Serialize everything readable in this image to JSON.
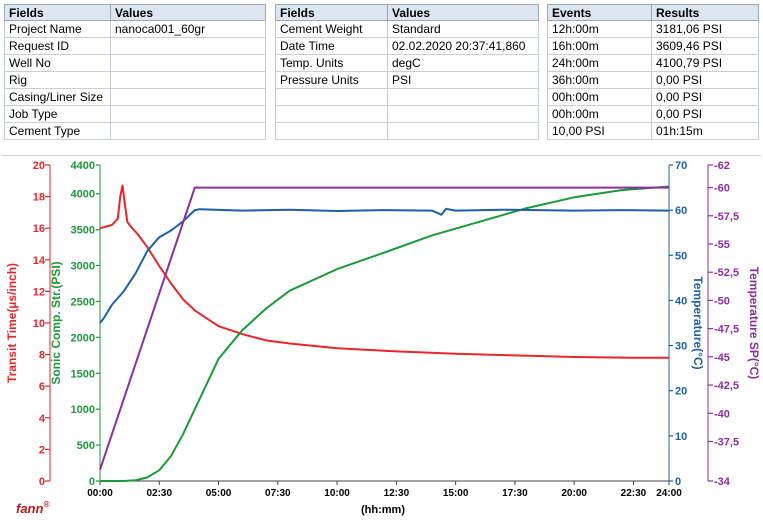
{
  "fields_table_1": {
    "header": [
      "Fields",
      "Values"
    ],
    "rows": [
      [
        "Project Name",
        "nanoca001_60gr"
      ],
      [
        "Request ID",
        ""
      ],
      [
        "Well No",
        ""
      ],
      [
        "Rig",
        ""
      ],
      [
        "Casing/Liner Size",
        ""
      ],
      [
        "Job Type",
        ""
      ],
      [
        "Cement Type",
        ""
      ]
    ]
  },
  "fields_table_2": {
    "header": [
      "Fields",
      "Values"
    ],
    "rows": [
      [
        "Cement Weight",
        "Standard"
      ],
      [
        "Date Time",
        "02.02.2020 20:37:41,860"
      ],
      [
        "Temp. Units",
        "degC"
      ],
      [
        "Pressure Units",
        "PSI"
      ],
      [
        "",
        ""
      ],
      [
        "",
        ""
      ],
      [
        "",
        ""
      ]
    ]
  },
  "events_table": {
    "header": [
      "Events",
      "Results"
    ],
    "rows": [
      [
        "12h:00m",
        "3181,06 PSI"
      ],
      [
        "16h:00m",
        "3609,46 PSI"
      ],
      [
        "24h:00m",
        "4100,79 PSI"
      ],
      [
        "36h:00m",
        "0,00 PSI"
      ],
      [
        "00h:00m",
        "0,00 PSI"
      ],
      [
        "00h:00m",
        "0,00 PSI"
      ],
      [
        "10,00 PSI",
        "01h:15m"
      ]
    ]
  },
  "logo_text": "fann",
  "logo_mark": "®",
  "chart_data": {
    "type": "line",
    "xlabel": "(hh:mm)",
    "x_range_hours": [
      0,
      24
    ],
    "x_ticks": [
      {
        "h": 0,
        "label": "00:00"
      },
      {
        "h": 2.5,
        "label": "02:30"
      },
      {
        "h": 5,
        "label": "05:00"
      },
      {
        "h": 7.5,
        "label": "07:30"
      },
      {
        "h": 10,
        "label": "10:00"
      },
      {
        "h": 12.5,
        "label": "12:30"
      },
      {
        "h": 15,
        "label": "15:00"
      },
      {
        "h": 17.5,
        "label": "17:30"
      },
      {
        "h": 20,
        "label": "20:00"
      },
      {
        "h": 22.5,
        "label": "22:30"
      },
      {
        "h": 24,
        "label": "24:00"
      }
    ],
    "axes": {
      "transit_time": {
        "label": "Transit Time(µs/inch)",
        "color": "#e8262a",
        "range": [
          0,
          20
        ],
        "ticks": [
          {
            "v": 0,
            "label": "0"
          },
          {
            "v": 2,
            "label": "2"
          },
          {
            "v": 4,
            "label": "4"
          },
          {
            "v": 6,
            "label": "6"
          },
          {
            "v": 8,
            "label": "8"
          },
          {
            "v": 10,
            "label": "10"
          },
          {
            "v": 12,
            "label": "12"
          },
          {
            "v": 14,
            "label": "14"
          },
          {
            "v": 16,
            "label": "16"
          },
          {
            "v": 18,
            "label": "18"
          },
          {
            "v": 20,
            "label": "20"
          }
        ]
      },
      "sonic_strength": {
        "label": "Sonic Comp. Str.(PSI)",
        "color": "#1a9a3a",
        "range": [
          0,
          4400
        ],
        "ticks": [
          {
            "v": 0,
            "label": "0"
          },
          {
            "v": 500,
            "label": "500"
          },
          {
            "v": 1000,
            "label": "1000"
          },
          {
            "v": 1500,
            "label": "1500"
          },
          {
            "v": 2000,
            "label": "2000"
          },
          {
            "v": 2500,
            "label": "2500"
          },
          {
            "v": 3000,
            "label": "3000"
          },
          {
            "v": 3500,
            "label": "3500"
          },
          {
            "v": 4000,
            "label": "4000"
          },
          {
            "v": 4400,
            "label": "4400"
          }
        ]
      },
      "temperature": {
        "label": "Temperature(°C)",
        "color": "#1f5fa8",
        "range": [
          0,
          70
        ],
        "ticks": [
          {
            "v": 0,
            "label": "0"
          },
          {
            "v": 10,
            "label": "10"
          },
          {
            "v": 20,
            "label": "20"
          },
          {
            "v": 30,
            "label": "30"
          },
          {
            "v": 40,
            "label": "40"
          },
          {
            "v": 50,
            "label": "50"
          },
          {
            "v": 60,
            "label": "60"
          },
          {
            "v": 70,
            "label": "70"
          }
        ]
      },
      "temperature_sp": {
        "label": "Temperature SP(°C)",
        "color": "#8b2ea0",
        "range": [
          -34,
          -62
        ],
        "ticks": [
          {
            "v": -34,
            "label": "-34"
          },
          {
            "v": -37.5,
            "label": "-37,5"
          },
          {
            "v": -40,
            "label": "-40"
          },
          {
            "v": -42.5,
            "label": "-42,5"
          },
          {
            "v": -45,
            "label": "-45"
          },
          {
            "v": -47.5,
            "label": "-47,5"
          },
          {
            "v": -50,
            "label": "-50"
          },
          {
            "v": -52.5,
            "label": "-52,5"
          },
          {
            "v": -55,
            "label": "-55"
          },
          {
            "v": -57.5,
            "label": "-57,5"
          },
          {
            "v": -60,
            "label": "-60"
          },
          {
            "v": -62,
            "label": "-62"
          }
        ]
      }
    },
    "series": [
      {
        "name": "Transit Time(µs/inch)",
        "axis": "transit_time",
        "color": "#e8262a",
        "x": [
          0,
          0.5,
          0.75,
          0.85,
          0.95,
          1.05,
          1.15,
          1.3,
          1.6,
          2.0,
          2.5,
          3.0,
          3.5,
          4.0,
          5.0,
          6.0,
          7.0,
          8.0,
          10.0,
          12.5,
          15.0,
          17.5,
          20.0,
          22.5,
          24.0
        ],
        "y": [
          16.0,
          16.2,
          16.6,
          18.0,
          18.7,
          17.5,
          16.4,
          16.1,
          15.6,
          14.8,
          13.6,
          12.5,
          11.5,
          10.8,
          9.8,
          9.3,
          8.9,
          8.7,
          8.4,
          8.2,
          8.05,
          7.95,
          7.85,
          7.8,
          7.8
        ]
      },
      {
        "name": "Sonic Comp. Str.(PSI)",
        "axis": "sonic_strength",
        "color": "#1a9a3a",
        "x": [
          0,
          1.0,
          1.5,
          2.0,
          2.5,
          3.0,
          3.5,
          4.0,
          4.5,
          5.0,
          6.0,
          7.0,
          8.0,
          10.0,
          12.0,
          14.0,
          16.0,
          18.0,
          20.0,
          22.0,
          24.0
        ],
        "y": [
          0,
          0,
          10,
          50,
          150,
          350,
          650,
          1000,
          1350,
          1700,
          2100,
          2400,
          2650,
          2950,
          3181,
          3420,
          3609,
          3800,
          3950,
          4050,
          4100
        ]
      },
      {
        "name": "Temperature(°C)",
        "axis": "temperature",
        "color": "#1f5fa8",
        "x": [
          0,
          0.15,
          0.5,
          1.0,
          1.5,
          2.0,
          2.5,
          3.0,
          3.5,
          4.0,
          4.2,
          6.0,
          8.0,
          10.0,
          12.0,
          14.0,
          14.4,
          14.6,
          15.0,
          17.0,
          20.0,
          22.0,
          24.0
        ],
        "y": [
          35,
          36,
          39,
          42,
          46,
          51,
          54,
          55.5,
          57.5,
          60,
          60.2,
          59.9,
          60.1,
          59.8,
          60.0,
          59.9,
          59.0,
          60.3,
          59.9,
          60.1,
          59.9,
          60.0,
          59.9
        ]
      },
      {
        "name": "Temperature SP(°C)",
        "axis": "temperature_sp",
        "color": "#8b2ea0",
        "x": [
          0,
          4.0,
          24.0
        ],
        "y": [
          -35,
          -60,
          -60
        ]
      }
    ],
    "grid": false
  }
}
